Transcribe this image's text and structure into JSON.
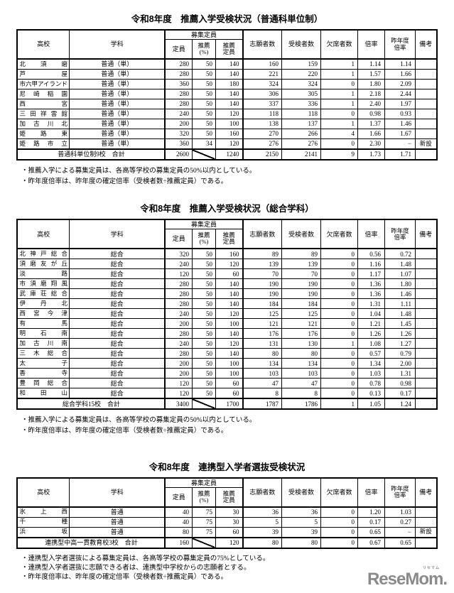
{
  "columns": {
    "school": "高校",
    "department": "学科",
    "capacity_group": "募集定員",
    "capacity": "定員",
    "recommend_pct_l1": "推薦",
    "recommend_pct_l2": "(%)",
    "recommend_cap_l1": "推薦",
    "recommend_cap_l2": "定員",
    "applicants": "志願者数",
    "examinees": "受検者数",
    "absentees": "欠席者数",
    "ratio": "倍率",
    "prev_ratio_l1": "昨年度",
    "prev_ratio_l2": "倍率",
    "remarks": "備考"
  },
  "tables": [
    {
      "title": "令和8年度　推薦入学受検状況（普通科単位制）",
      "rows": [
        {
          "school": "北須磨",
          "dept": "普通（単）",
          "cap": 280,
          "pct": 50,
          "rcap": 140,
          "app": 160,
          "exam": 159,
          "abs": 1,
          "ratio": "1.14",
          "prev": "1.14",
          "rem": ""
        },
        {
          "school": "芦屋",
          "dept": "普通（単）",
          "cap": 280,
          "pct": 50,
          "rcap": 140,
          "app": 221,
          "exam": 220,
          "abs": 1,
          "ratio": "1.57",
          "prev": "1.66",
          "rem": ""
        },
        {
          "school": "市六甲アイランド",
          "dept": "普通（単）",
          "cap": 360,
          "pct": 50,
          "rcap": 180,
          "app": 324,
          "exam": 324,
          "abs": 0,
          "ratio": "1.80",
          "prev": "2.09",
          "rem": ""
        },
        {
          "school": "尼崎稲園",
          "dept": "普通（単）",
          "cap": 280,
          "pct": 50,
          "rcap": 140,
          "app": 306,
          "exam": 305,
          "abs": 1,
          "ratio": "2.18",
          "prev": "2.44",
          "rem": ""
        },
        {
          "school": "西宮",
          "dept": "普通（単）",
          "cap": 280,
          "pct": 50,
          "rcap": 140,
          "app": 337,
          "exam": 336,
          "abs": 1,
          "ratio": "2.40",
          "prev": "1.97",
          "rem": ""
        },
        {
          "school": "三田祥雲館",
          "dept": "普通（単）",
          "cap": 240,
          "pct": 50,
          "rcap": 120,
          "app": 118,
          "exam": 118,
          "abs": 0,
          "ratio": "0.98",
          "prev": "0.93",
          "rem": ""
        },
        {
          "school": "加古川北",
          "dept": "普通（単）",
          "cap": 200,
          "pct": 50,
          "rcap": 100,
          "app": 138,
          "exam": 137,
          "abs": 1,
          "ratio": "1.37",
          "prev": "1.46",
          "rem": ""
        },
        {
          "school": "姫路東",
          "dept": "普通（単）",
          "cap": 320,
          "pct": 50,
          "rcap": 160,
          "app": 270,
          "exam": 266,
          "abs": 4,
          "ratio": "1.66",
          "prev": "1.67",
          "rem": ""
        },
        {
          "school": "姫路市立",
          "dept": "普通（単）",
          "cap": 360,
          "pct": 34,
          "rcap": 120,
          "app": 276,
          "exam": 276,
          "abs": 0,
          "ratio": "2.30",
          "prev": "−",
          "rem": "新設"
        }
      ],
      "total": {
        "label": "普通科単位制9校　合計",
        "cap": 2600,
        "rcap": 1240,
        "app": 2150,
        "exam": 2141,
        "abs": 9,
        "ratio": "1.73",
        "prev": "1.71",
        "rem": ""
      },
      "notes": [
        "・推薦入学による募集定員は、各高等学校の募集定員の50%以内としている。",
        "・昨年度倍率は、昨年度の確定倍率（受検者数÷推薦定員）である。"
      ]
    },
    {
      "title": "令和8年度　推薦入学受検状況（総合学科）",
      "rows": [
        {
          "school": "北神戸総合",
          "dept": "総合",
          "cap": 320,
          "pct": 50,
          "rcap": 160,
          "app": 89,
          "exam": 89,
          "abs": 0,
          "ratio": "0.56",
          "prev": "0.72",
          "rem": ""
        },
        {
          "school": "須磨友が丘",
          "dept": "総合",
          "cap": 240,
          "pct": 50,
          "rcap": 120,
          "app": 139,
          "exam": 139,
          "abs": 0,
          "ratio": "1.16",
          "prev": "1.48",
          "rem": ""
        },
        {
          "school": "淡路",
          "dept": "総合",
          "cap": 120,
          "pct": 50,
          "rcap": 60,
          "app": 70,
          "exam": 70,
          "abs": 0,
          "ratio": "1.17",
          "prev": "1.07",
          "rem": ""
        },
        {
          "school": "市須磨翔風",
          "dept": "総合",
          "cap": 280,
          "pct": 50,
          "rcap": 140,
          "app": 190,
          "exam": 190,
          "abs": 0,
          "ratio": "1.36",
          "prev": "1.80",
          "rem": ""
        },
        {
          "school": "武庫荘総合",
          "dept": "総合",
          "cap": 280,
          "pct": 50,
          "rcap": 140,
          "app": 190,
          "exam": 190,
          "abs": 0,
          "ratio": "1.36",
          "prev": "1.46",
          "rem": ""
        },
        {
          "school": "伊丹北",
          "dept": "総合",
          "cap": 280,
          "pct": 50,
          "rcap": 140,
          "app": 184,
          "exam": 184,
          "abs": 0,
          "ratio": "1.31",
          "prev": "1.11",
          "rem": ""
        },
        {
          "school": "西宮今津",
          "dept": "総合",
          "cap": 240,
          "pct": 50,
          "rcap": 120,
          "app": 125,
          "exam": 125,
          "abs": 0,
          "ratio": "1.04",
          "prev": "1.48",
          "rem": ""
        },
        {
          "school": "有馬",
          "dept": "総合",
          "cap": 200,
          "pct": 50,
          "rcap": 100,
          "app": 121,
          "exam": 121,
          "abs": 0,
          "ratio": "1.21",
          "prev": "1.45",
          "rem": ""
        },
        {
          "school": "明石南",
          "dept": "総合",
          "cap": 280,
          "pct": 50,
          "rcap": 140,
          "app": 176,
          "exam": 176,
          "abs": 0,
          "ratio": "1.26",
          "prev": "1.26",
          "rem": ""
        },
        {
          "school": "加古川南",
          "dept": "総合",
          "cap": 240,
          "pct": 50,
          "rcap": 120,
          "app": 131,
          "exam": 130,
          "abs": 1,
          "ratio": "1.08",
          "prev": "1.27",
          "rem": ""
        },
        {
          "school": "三木総合",
          "dept": "総合",
          "cap": 280,
          "pct": 50,
          "rcap": 140,
          "app": 80,
          "exam": 80,
          "abs": 0,
          "ratio": "0.57",
          "prev": "0.79",
          "rem": ""
        },
        {
          "school": "太子",
          "dept": "総合",
          "cap": 200,
          "pct": 50,
          "rcap": 100,
          "app": 134,
          "exam": 134,
          "abs": 0,
          "ratio": "1.34",
          "prev": "2.00",
          "rem": ""
        },
        {
          "school": "香寺",
          "dept": "総合",
          "cap": 200,
          "pct": 50,
          "rcap": 100,
          "app": 103,
          "exam": 103,
          "abs": 0,
          "ratio": "1.03",
          "prev": "1.31",
          "rem": ""
        },
        {
          "school": "豊岡総合",
          "dept": "総合",
          "cap": 120,
          "pct": 50,
          "rcap": 60,
          "app": 47,
          "exam": 47,
          "abs": 0,
          "ratio": "0.78",
          "prev": "0.98",
          "rem": ""
        },
        {
          "school": "和田山",
          "dept": "総合",
          "cap": 120,
          "pct": 50,
          "rcap": 60,
          "app": 8,
          "exam": 8,
          "abs": 0,
          "ratio": "0.13",
          "prev": "0.17",
          "rem": ""
        }
      ],
      "total": {
        "label": "総合学科15校　合計",
        "cap": 3400,
        "rcap": 1700,
        "app": 1787,
        "exam": 1786,
        "abs": 1,
        "ratio": "1.05",
        "prev": "1.24",
        "rem": ""
      },
      "notes": [
        "・推薦入学による募集定員は、各高等学校の募集定員の50%以内としている。",
        "・昨年度倍率は、昨年度の確定倍率（受検者数÷推薦定員）である。"
      ]
    },
    {
      "title": "令和8年度　連携型入学者選抜受検状況",
      "rows": [
        {
          "school": "氷上西",
          "dept": "普通",
          "cap": 40,
          "pct": 75,
          "rcap": 30,
          "app": 36,
          "exam": 36,
          "abs": 0,
          "ratio": "1.20",
          "prev": "1.03",
          "rem": ""
        },
        {
          "school": "千種",
          "dept": "普通",
          "cap": 40,
          "pct": 75,
          "rcap": 30,
          "app": 5,
          "exam": 5,
          "abs": 0,
          "ratio": "0.17",
          "prev": "0.27",
          "rem": ""
        },
        {
          "school": "浜坂",
          "dept": "普通",
          "cap": 80,
          "pct": 75,
          "rcap": 60,
          "app": 39,
          "exam": 39,
          "abs": 0,
          "ratio": "0.65",
          "prev": "−",
          "rem": "新設"
        }
      ],
      "total": {
        "label": "連携型中高一貫教育校3校　合計",
        "cap": 160,
        "rcap": 120,
        "app": 80,
        "exam": 80,
        "abs": 0,
        "ratio": "0.67",
        "prev": "0.65",
        "rem": ""
      },
      "notes": [
        "・連携型入学者選抜による募集定員は、各高等学校の募集定員の75%としている。",
        "・連携型入学者選抜に志願できる者は、連携型中学校からの志願者とする。",
        "・昨年度倍率は、昨年度の確定倍率（受検者数÷推薦定員）である。"
      ]
    }
  ],
  "logo": {
    "text": "ReseMom.",
    "ruby": "リセマム",
    "color": "#8a8a8a"
  }
}
